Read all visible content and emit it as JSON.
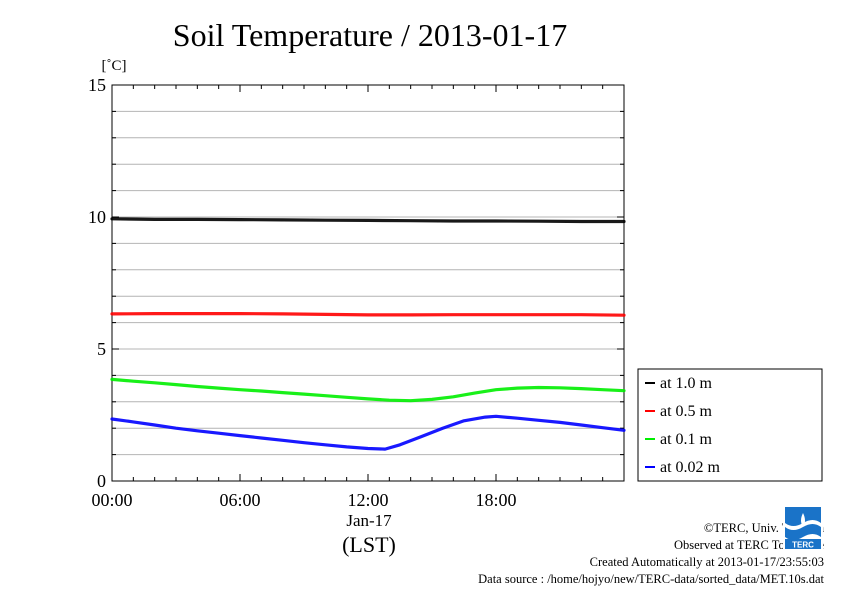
{
  "chart_data": {
    "type": "line",
    "title": "Soil Temperature / 2013-01-17",
    "ylabel": "[˚C]",
    "ylim": [
      0,
      15
    ],
    "yticks": [
      0,
      5,
      10,
      15
    ],
    "xlim": [
      0,
      24
    ],
    "xticks": [
      {
        "value": 0,
        "label": "00:00"
      },
      {
        "value": 6,
        "label": "06:00"
      },
      {
        "value": 12,
        "label": "12:00"
      },
      {
        "value": 18,
        "label": "18:00"
      }
    ],
    "date_label": "Jan-17",
    "xlabel": "(LST)",
    "grid": true,
    "legend_position": "right",
    "series": [
      {
        "name": "at 1.0 m",
        "color": "#000000",
        "x": [
          0,
          2,
          4,
          6,
          8,
          10,
          12,
          14,
          16,
          18,
          20,
          22,
          24
        ],
        "y": [
          9.93,
          9.91,
          9.91,
          9.9,
          9.89,
          9.88,
          9.87,
          9.86,
          9.85,
          9.85,
          9.84,
          9.83,
          9.83
        ]
      },
      {
        "name": "at 0.5 m",
        "color": "#ff0000",
        "x": [
          0,
          2,
          4,
          6,
          8,
          10,
          12,
          14,
          16,
          18,
          20,
          22,
          24
        ],
        "y": [
          6.33,
          6.34,
          6.34,
          6.34,
          6.33,
          6.31,
          6.29,
          6.29,
          6.3,
          6.3,
          6.3,
          6.3,
          6.28
        ]
      },
      {
        "name": "at 0.1 m",
        "color": "#00ee00",
        "x": [
          0,
          1,
          2,
          3,
          4,
          5,
          6,
          7,
          8,
          9,
          10,
          11,
          12,
          13,
          14,
          15,
          16,
          17,
          18,
          19,
          20,
          21,
          22,
          23,
          24
        ],
        "y": [
          3.85,
          3.78,
          3.72,
          3.65,
          3.58,
          3.52,
          3.46,
          3.41,
          3.35,
          3.29,
          3.23,
          3.17,
          3.11,
          3.06,
          3.04,
          3.09,
          3.19,
          3.33,
          3.46,
          3.52,
          3.54,
          3.53,
          3.5,
          3.46,
          3.42
        ]
      },
      {
        "name": "at 0.02 m",
        "color": "#0000ff",
        "x": [
          0,
          1,
          2,
          3,
          4,
          5,
          6,
          7,
          8,
          9,
          10,
          11,
          12,
          12.8,
          13.5,
          14.5,
          15.5,
          16.5,
          17.5,
          18,
          19,
          20,
          21,
          22,
          23,
          24
        ],
        "y": [
          2.35,
          2.24,
          2.12,
          2.0,
          1.9,
          1.81,
          1.72,
          1.63,
          1.54,
          1.45,
          1.37,
          1.29,
          1.23,
          1.21,
          1.37,
          1.68,
          2.0,
          2.28,
          2.42,
          2.45,
          2.38,
          2.3,
          2.22,
          2.12,
          2.02,
          1.92
        ]
      }
    ]
  },
  "footer": {
    "copyright": "©TERC, Univ. Tsukuba",
    "observed": "Observed at TERC Tower site",
    "created": "Created Automatically at 2013-01-17/23:55:03",
    "source": "Data source : /home/hojyo/new/TERC-data/sorted_data/MET.10s.dat"
  },
  "logo": {
    "text": "TERC",
    "color": "#1a73c8"
  }
}
